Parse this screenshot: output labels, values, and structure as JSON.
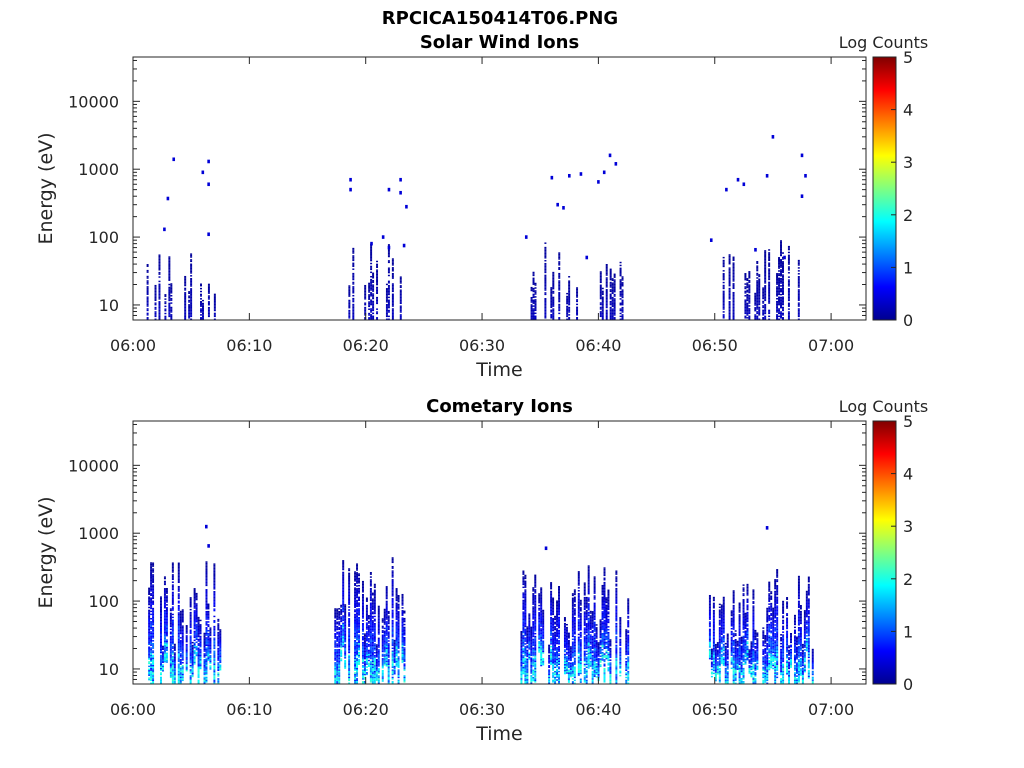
{
  "figure": {
    "title": "RPCICA150414T06.PNG"
  },
  "colormap": {
    "name": "jet",
    "stops": [
      "#00008f",
      "#0000ff",
      "#0080ff",
      "#00ffff",
      "#80ff80",
      "#ffff00",
      "#ff8000",
      "#ff0000",
      "#800000"
    ]
  },
  "chart_data": [
    {
      "type": "heatmap",
      "title": "Solar Wind Ions",
      "xlabel": "Time",
      "ylabel": "Energy (eV)",
      "y_scale": "log",
      "ylim": [
        6,
        45000
      ],
      "y_ticks": [
        10,
        100,
        1000,
        10000
      ],
      "y_tick_labels": [
        "10",
        "100",
        "1000",
        "10000"
      ],
      "xlim": [
        "06:00",
        "07:03"
      ],
      "x_tick_labels": [
        "06:00",
        "06:10",
        "06:20",
        "06:30",
        "06:40",
        "06:50",
        "07:00"
      ],
      "colorbar": {
        "label": "Log Counts",
        "range": [
          0,
          5
        ],
        "tick_labels": [
          "0",
          "1",
          "2",
          "3",
          "4",
          "5"
        ]
      },
      "bursts": [
        {
          "start": "06:01",
          "end": "06:07",
          "emin": 6,
          "emax": 60,
          "peak": 0.3
        },
        {
          "start": "06:18",
          "end": "06:23",
          "emin": 6,
          "emax": 120,
          "peak": 0.3
        },
        {
          "start": "06:34",
          "end": "06:42",
          "emin": 6,
          "emax": 90,
          "peak": 0.3
        },
        {
          "start": "06:50",
          "end": "06:58",
          "emin": 6,
          "emax": 90,
          "peak": 0.3
        }
      ],
      "sparse_points": [
        {
          "t": "06:03.5",
          "e": 1400,
          "v": 0.4
        },
        {
          "t": "06:06.5",
          "e": 1300,
          "v": 0.4
        },
        {
          "t": "06:06.0",
          "e": 900,
          "v": 0.4
        },
        {
          "t": "06:06.5",
          "e": 600,
          "v": 0.4
        },
        {
          "t": "06:03.0",
          "e": 370,
          "v": 0.4
        },
        {
          "t": "06:02.7",
          "e": 130,
          "v": 0.4
        },
        {
          "t": "06:06.5",
          "e": 110,
          "v": 0.4
        },
        {
          "t": "06:18.7",
          "e": 700,
          "v": 0.4
        },
        {
          "t": "06:18.7",
          "e": 500,
          "v": 0.4
        },
        {
          "t": "06:22.0",
          "e": 500,
          "v": 0.4
        },
        {
          "t": "06:23.0",
          "e": 700,
          "v": 0.4
        },
        {
          "t": "06:23.0",
          "e": 450,
          "v": 0.4
        },
        {
          "t": "06:23.5",
          "e": 280,
          "v": 0.4
        },
        {
          "t": "06:20.5",
          "e": 80,
          "v": 0.4
        },
        {
          "t": "06:21.5",
          "e": 100,
          "v": 0.4
        },
        {
          "t": "06:22.0",
          "e": 70,
          "v": 0.4
        },
        {
          "t": "06:23.3",
          "e": 75,
          "v": 0.4
        },
        {
          "t": "06:36.0",
          "e": 750,
          "v": 0.4
        },
        {
          "t": "06:37.5",
          "e": 800,
          "v": 0.4
        },
        {
          "t": "06:38.5",
          "e": 850,
          "v": 0.4
        },
        {
          "t": "06:40.0",
          "e": 650,
          "v": 0.4
        },
        {
          "t": "06:40.5",
          "e": 900,
          "v": 0.4
        },
        {
          "t": "06:41.0",
          "e": 1600,
          "v": 0.4
        },
        {
          "t": "06:41.5",
          "e": 1200,
          "v": 0.4
        },
        {
          "t": "06:36.5",
          "e": 300,
          "v": 0.4
        },
        {
          "t": "06:37.0",
          "e": 270,
          "v": 0.4
        },
        {
          "t": "06:33.8",
          "e": 100,
          "v": 0.4
        },
        {
          "t": "06:39.0",
          "e": 50,
          "v": 0.4
        },
        {
          "t": "06:52.0",
          "e": 700,
          "v": 0.4
        },
        {
          "t": "06:52.5",
          "e": 600,
          "v": 0.4
        },
        {
          "t": "06:54.5",
          "e": 800,
          "v": 0.4
        },
        {
          "t": "06:55.0",
          "e": 3000,
          "v": 0.4
        },
        {
          "t": "06:57.5",
          "e": 1600,
          "v": 0.4
        },
        {
          "t": "06:57.8",
          "e": 800,
          "v": 0.4
        },
        {
          "t": "06:57.5",
          "e": 400,
          "v": 0.4
        },
        {
          "t": "06:51.0",
          "e": 500,
          "v": 0.4
        },
        {
          "t": "06:53.5",
          "e": 65,
          "v": 0.4
        },
        {
          "t": "06:49.7",
          "e": 90,
          "v": 0.4
        },
        {
          "t": "06:56.0",
          "e": 50,
          "v": 0.4
        }
      ]
    },
    {
      "type": "heatmap",
      "title": "Cometary Ions",
      "xlabel": "Time",
      "ylabel": "Energy (eV)",
      "y_scale": "log",
      "ylim": [
        6,
        45000
      ],
      "y_ticks": [
        10,
        100,
        1000,
        10000
      ],
      "y_tick_labels": [
        "10",
        "100",
        "1000",
        "10000"
      ],
      "xlim": [
        "06:00",
        "07:03"
      ],
      "x_tick_labels": [
        "06:00",
        "06:10",
        "06:20",
        "06:30",
        "06:40",
        "06:50",
        "07:00"
      ],
      "colorbar": {
        "label": "Log Counts",
        "range": [
          0,
          5
        ],
        "tick_labels": [
          "0",
          "1",
          "2",
          "3",
          "4",
          "5"
        ]
      },
      "bursts": [
        {
          "start": "06:01.3",
          "end": "06:07.5",
          "emin": 6,
          "emax": 400,
          "peak": 1.8
        },
        {
          "start": "06:17.3",
          "end": "06:23.4",
          "emin": 6,
          "emax": 500,
          "peak": 1.8
        },
        {
          "start": "06:33.3",
          "end": "06:42.5",
          "emin": 6,
          "emax": 400,
          "peak": 1.8
        },
        {
          "start": "06:49.5",
          "end": "06:58.5",
          "emin": 6,
          "emax": 300,
          "peak": 1.8
        }
      ],
      "sparse_points": [
        {
          "t": "06:06.3",
          "e": 1250,
          "v": 0.4
        },
        {
          "t": "06:06.5",
          "e": 650,
          "v": 0.4
        },
        {
          "t": "06:35.5",
          "e": 600,
          "v": 0.4
        },
        {
          "t": "06:54.5",
          "e": 1200,
          "v": 0.4
        }
      ]
    }
  ]
}
